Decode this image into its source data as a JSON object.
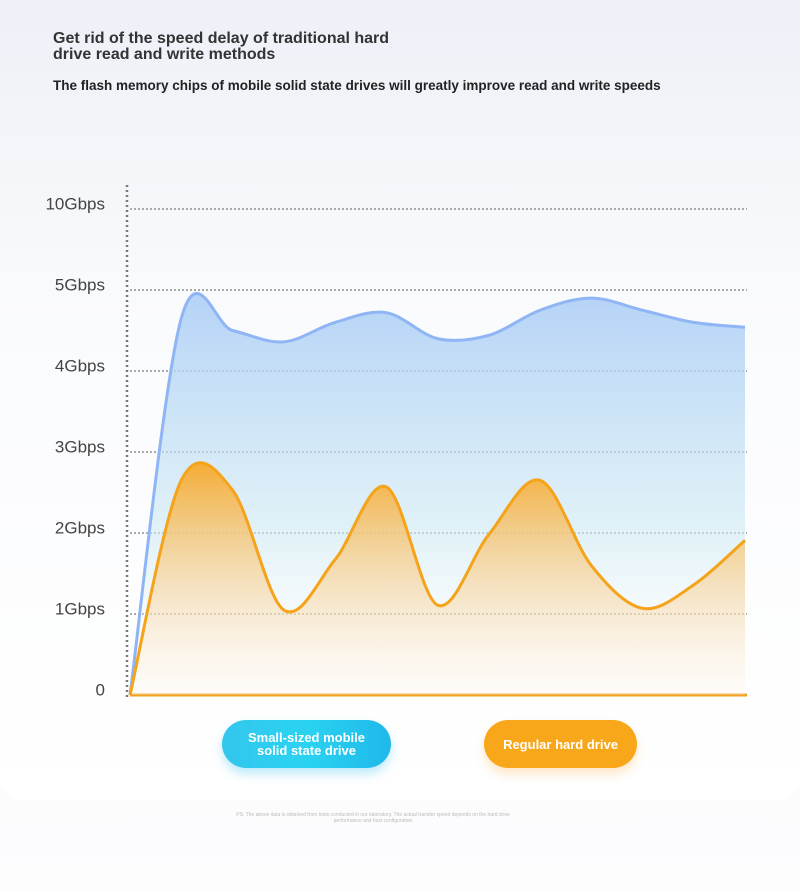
{
  "chart_data": {
    "type": "area",
    "title": "Get rid of the speed delay of traditional hard drive read and write methods",
    "subtitle": "The flash memory chips of mobile solid state drives will greatly improve read and write speeds",
    "categories": [
      null,
      null,
      null,
      null,
      null,
      null,
      null,
      null,
      null,
      null,
      null,
      null,
      null
    ],
    "series": [
      {
        "name": "Small-sized mobile solid state drive",
        "color": "#8fb5f5",
        "values": [
          0,
          4.65,
          4.5,
          4.36,
          4.6,
          4.72,
          4.4,
          4.44,
          4.75,
          4.9,
          4.75,
          4.6,
          4.54
        ]
      },
      {
        "name": "Regular hard drive",
        "color": "#f5a31a",
        "values": [
          0,
          2.65,
          2.53,
          1.05,
          1.67,
          2.57,
          1.11,
          1.98,
          2.65,
          1.6,
          1.07,
          1.36,
          1.91
        ]
      }
    ],
    "ylim": [
      0,
      10
    ],
    "yticks": [
      0,
      {
        "value": 1,
        "label": "1Gbps"
      },
      {
        "value": 2,
        "label": "2Gbps"
      },
      {
        "value": 3,
        "label": "3Gbps"
      },
      {
        "value": 4,
        "label": "4Gbps"
      },
      {
        "value": 5,
        "label": "5Gbps"
      },
      {
        "value": 10,
        "label": "10Gbps"
      }
    ],
    "grid": true,
    "footnote": "PS: The above data is obtained from tests conducted in our laboratory. The actual transfer speed depends on the hard drive performance and host configuration"
  }
}
